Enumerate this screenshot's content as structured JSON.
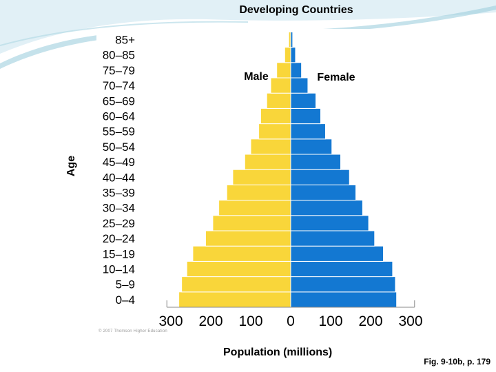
{
  "slide": {
    "caption": "Fig. 9-10b, p. 179",
    "copyright": "© 2007 Thomson Higher Education"
  },
  "chart_data": {
    "type": "bar",
    "subtype": "population-pyramid",
    "title": "Developing Countries",
    "xlabel": "Population (millions)",
    "ylabel": "Age",
    "xticks": [
      300,
      200,
      100,
      0,
      100,
      200,
      300
    ],
    "xlim": [
      -300,
      300
    ],
    "categories": [
      "0–4",
      "5–9",
      "10–14",
      "15–19",
      "20–24",
      "25–29",
      "30–34",
      "35–39",
      "40–44",
      "45–49",
      "50–54",
      "55–59",
      "60–64",
      "65–69",
      "70–74",
      "75–79",
      "80–85",
      "85+"
    ],
    "series": [
      {
        "name": "Male",
        "color": "#F9D63A",
        "values": [
          280,
          273,
          260,
          245,
          213,
          195,
          180,
          160,
          145,
          115,
          100,
          80,
          75,
          60,
          50,
          35,
          15,
          5
        ]
      },
      {
        "name": "Female",
        "color": "#1378D2",
        "values": [
          265,
          262,
          255,
          232,
          210,
          195,
          180,
          163,
          147,
          125,
          103,
          87,
          75,
          63,
          43,
          27,
          12,
          5
        ]
      }
    ],
    "grid": false,
    "legend": "labels above bars"
  }
}
